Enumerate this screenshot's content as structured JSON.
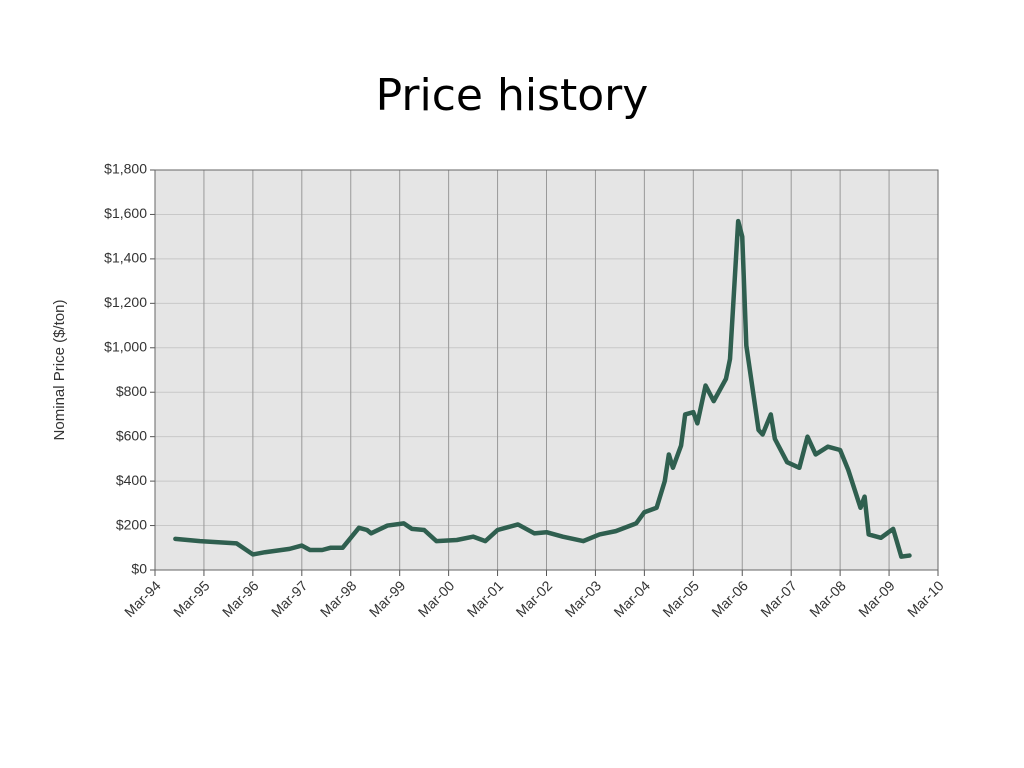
{
  "chart_data": {
    "type": "line",
    "title": "Price history",
    "y_label": "Nominal Price ($/ton)",
    "x": [
      "1994-08",
      "1995-02",
      "1995-11",
      "1996-03",
      "1996-06",
      "1996-12",
      "1997-03",
      "1997-05",
      "1997-08",
      "1997-10",
      "1998-01",
      "1998-03",
      "1998-05",
      "1998-07",
      "1998-08",
      "1998-12",
      "1999-04",
      "1999-06",
      "1999-09",
      "1999-12",
      "2000-05",
      "2000-09",
      "2000-12",
      "2001-03",
      "2001-08",
      "2001-12",
      "2002-03",
      "2002-07",
      "2002-12",
      "2003-04",
      "2003-08",
      "2004-01",
      "2004-03",
      "2004-06",
      "2004-08",
      "2004-09",
      "2004-10",
      "2004-12",
      "2005-01",
      "2005-03",
      "2005-04",
      "2005-06",
      "2005-08",
      "2005-11",
      "2005-12",
      "2006-02",
      "2006-03",
      "2006-04",
      "2006-07",
      "2006-08",
      "2006-10",
      "2006-11",
      "2007-02",
      "2007-05",
      "2007-07",
      "2007-09",
      "2007-12",
      "2008-03",
      "2008-05",
      "2008-08",
      "2008-09",
      "2008-10",
      "2009-01",
      "2009-04",
      "2009-06",
      "2009-08"
    ],
    "series": [
      {
        "name": "Price",
        "color": "#2f5f4f",
        "values": [
          140,
          130,
          120,
          70,
          80,
          95,
          110,
          90,
          90,
          100,
          100,
          145,
          190,
          180,
          165,
          200,
          210,
          185,
          180,
          130,
          135,
          150,
          130,
          180,
          205,
          165,
          170,
          150,
          130,
          160,
          175,
          210,
          260,
          280,
          400,
          520,
          460,
          560,
          700,
          710,
          660,
          830,
          760,
          860,
          950,
          1570,
          1500,
          1010,
          630,
          610,
          700,
          590,
          485,
          460,
          600,
          520,
          555,
          540,
          450,
          280,
          330,
          160,
          145,
          185,
          60,
          65
        ]
      }
    ],
    "xlim": [
      "1994-03",
      "2010-03"
    ],
    "xticks": [
      {
        "value": "1994-03",
        "label": "Mar-94"
      },
      {
        "value": "1995-03",
        "label": "Mar-95"
      },
      {
        "value": "1996-03",
        "label": "Mar-96"
      },
      {
        "value": "1997-03",
        "label": "Mar-97"
      },
      {
        "value": "1998-03",
        "label": "Mar-98"
      },
      {
        "value": "1999-03",
        "label": "Mar-99"
      },
      {
        "value": "2000-03",
        "label": "Mar-00"
      },
      {
        "value": "2001-03",
        "label": "Mar-01"
      },
      {
        "value": "2002-03",
        "label": "Mar-02"
      },
      {
        "value": "2003-03",
        "label": "Mar-03"
      },
      {
        "value": "2004-03",
        "label": "Mar-04"
      },
      {
        "value": "2005-03",
        "label": "Mar-05"
      },
      {
        "value": "2006-03",
        "label": "Mar-06"
      },
      {
        "value": "2007-03",
        "label": "Mar-07"
      },
      {
        "value": "2008-03",
        "label": "Mar-08"
      },
      {
        "value": "2009-03",
        "label": "Mar-09"
      },
      {
        "value": "2010-03",
        "label": "Mar-10"
      }
    ],
    "ylim": [
      0,
      1800
    ],
    "yticks": [
      {
        "value": 0,
        "label": "$0"
      },
      {
        "value": 200,
        "label": "$200"
      },
      {
        "value": 400,
        "label": "$400"
      },
      {
        "value": 600,
        "label": "$600"
      },
      {
        "value": 800,
        "label": "$800"
      },
      {
        "value": 1000,
        "label": "$1,000"
      },
      {
        "value": 1200,
        "label": "$1,200"
      },
      {
        "value": 1400,
        "label": "$1,400"
      },
      {
        "value": 1600,
        "label": "$1,600"
      },
      {
        "value": 1800,
        "label": "$1,800"
      }
    ],
    "grid": true
  }
}
